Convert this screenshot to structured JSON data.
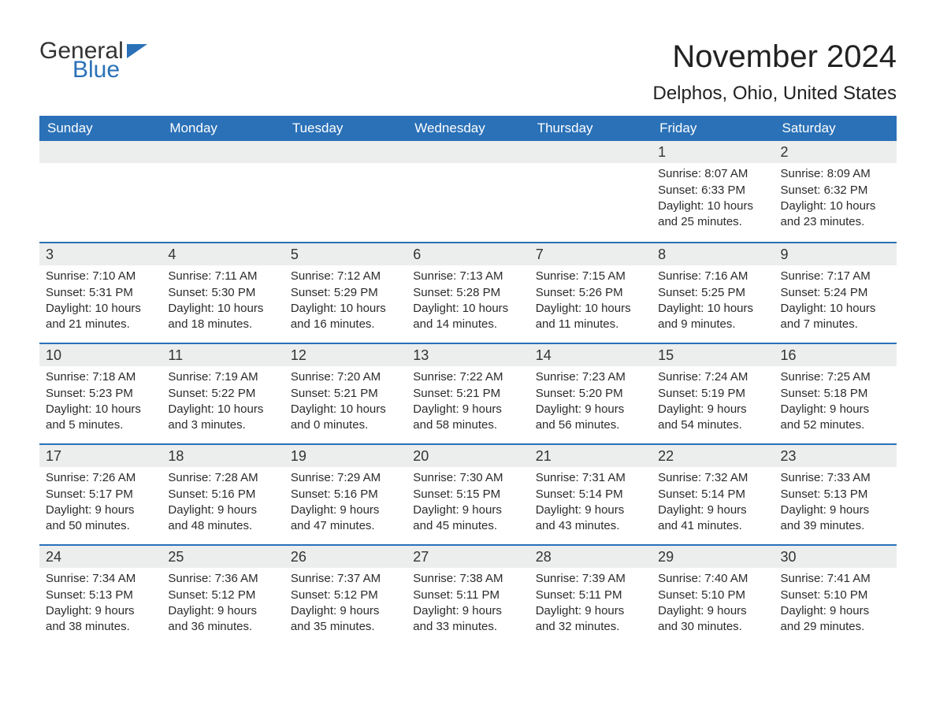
{
  "brand": {
    "part1": "General",
    "part2": "Blue"
  },
  "title": "November 2024",
  "location": "Delphos, Ohio, United States",
  "colors": {
    "header_bg": "#2a71b8",
    "header_text": "#ffffff",
    "daynum_bg": "#eceded",
    "week_border": "#2a71b8",
    "text": "#2b2b2b",
    "page_bg": "#ffffff"
  },
  "daynames": [
    "Sunday",
    "Monday",
    "Tuesday",
    "Wednesday",
    "Thursday",
    "Friday",
    "Saturday"
  ],
  "weeks": [
    [
      {
        "n": "",
        "sunrise": "",
        "sunset": "",
        "daylight": "",
        "empty": true
      },
      {
        "n": "",
        "sunrise": "",
        "sunset": "",
        "daylight": "",
        "empty": true
      },
      {
        "n": "",
        "sunrise": "",
        "sunset": "",
        "daylight": "",
        "empty": true
      },
      {
        "n": "",
        "sunrise": "",
        "sunset": "",
        "daylight": "",
        "empty": true
      },
      {
        "n": "",
        "sunrise": "",
        "sunset": "",
        "daylight": "",
        "empty": true
      },
      {
        "n": "1",
        "sunrise": "Sunrise: 8:07 AM",
        "sunset": "Sunset: 6:33 PM",
        "daylight": "Daylight: 10 hours and 25 minutes."
      },
      {
        "n": "2",
        "sunrise": "Sunrise: 8:09 AM",
        "sunset": "Sunset: 6:32 PM",
        "daylight": "Daylight: 10 hours and 23 minutes."
      }
    ],
    [
      {
        "n": "3",
        "sunrise": "Sunrise: 7:10 AM",
        "sunset": "Sunset: 5:31 PM",
        "daylight": "Daylight: 10 hours and 21 minutes."
      },
      {
        "n": "4",
        "sunrise": "Sunrise: 7:11 AM",
        "sunset": "Sunset: 5:30 PM",
        "daylight": "Daylight: 10 hours and 18 minutes."
      },
      {
        "n": "5",
        "sunrise": "Sunrise: 7:12 AM",
        "sunset": "Sunset: 5:29 PM",
        "daylight": "Daylight: 10 hours and 16 minutes."
      },
      {
        "n": "6",
        "sunrise": "Sunrise: 7:13 AM",
        "sunset": "Sunset: 5:28 PM",
        "daylight": "Daylight: 10 hours and 14 minutes."
      },
      {
        "n": "7",
        "sunrise": "Sunrise: 7:15 AM",
        "sunset": "Sunset: 5:26 PM",
        "daylight": "Daylight: 10 hours and 11 minutes."
      },
      {
        "n": "8",
        "sunrise": "Sunrise: 7:16 AM",
        "sunset": "Sunset: 5:25 PM",
        "daylight": "Daylight: 10 hours and 9 minutes."
      },
      {
        "n": "9",
        "sunrise": "Sunrise: 7:17 AM",
        "sunset": "Sunset: 5:24 PM",
        "daylight": "Daylight: 10 hours and 7 minutes."
      }
    ],
    [
      {
        "n": "10",
        "sunrise": "Sunrise: 7:18 AM",
        "sunset": "Sunset: 5:23 PM",
        "daylight": "Daylight: 10 hours and 5 minutes."
      },
      {
        "n": "11",
        "sunrise": "Sunrise: 7:19 AM",
        "sunset": "Sunset: 5:22 PM",
        "daylight": "Daylight: 10 hours and 3 minutes."
      },
      {
        "n": "12",
        "sunrise": "Sunrise: 7:20 AM",
        "sunset": "Sunset: 5:21 PM",
        "daylight": "Daylight: 10 hours and 0 minutes."
      },
      {
        "n": "13",
        "sunrise": "Sunrise: 7:22 AM",
        "sunset": "Sunset: 5:21 PM",
        "daylight": "Daylight: 9 hours and 58 minutes."
      },
      {
        "n": "14",
        "sunrise": "Sunrise: 7:23 AM",
        "sunset": "Sunset: 5:20 PM",
        "daylight": "Daylight: 9 hours and 56 minutes."
      },
      {
        "n": "15",
        "sunrise": "Sunrise: 7:24 AM",
        "sunset": "Sunset: 5:19 PM",
        "daylight": "Daylight: 9 hours and 54 minutes."
      },
      {
        "n": "16",
        "sunrise": "Sunrise: 7:25 AM",
        "sunset": "Sunset: 5:18 PM",
        "daylight": "Daylight: 9 hours and 52 minutes."
      }
    ],
    [
      {
        "n": "17",
        "sunrise": "Sunrise: 7:26 AM",
        "sunset": "Sunset: 5:17 PM",
        "daylight": "Daylight: 9 hours and 50 minutes."
      },
      {
        "n": "18",
        "sunrise": "Sunrise: 7:28 AM",
        "sunset": "Sunset: 5:16 PM",
        "daylight": "Daylight: 9 hours and 48 minutes."
      },
      {
        "n": "19",
        "sunrise": "Sunrise: 7:29 AM",
        "sunset": "Sunset: 5:16 PM",
        "daylight": "Daylight: 9 hours and 47 minutes."
      },
      {
        "n": "20",
        "sunrise": "Sunrise: 7:30 AM",
        "sunset": "Sunset: 5:15 PM",
        "daylight": "Daylight: 9 hours and 45 minutes."
      },
      {
        "n": "21",
        "sunrise": "Sunrise: 7:31 AM",
        "sunset": "Sunset: 5:14 PM",
        "daylight": "Daylight: 9 hours and 43 minutes."
      },
      {
        "n": "22",
        "sunrise": "Sunrise: 7:32 AM",
        "sunset": "Sunset: 5:14 PM",
        "daylight": "Daylight: 9 hours and 41 minutes."
      },
      {
        "n": "23",
        "sunrise": "Sunrise: 7:33 AM",
        "sunset": "Sunset: 5:13 PM",
        "daylight": "Daylight: 9 hours and 39 minutes."
      }
    ],
    [
      {
        "n": "24",
        "sunrise": "Sunrise: 7:34 AM",
        "sunset": "Sunset: 5:13 PM",
        "daylight": "Daylight: 9 hours and 38 minutes."
      },
      {
        "n": "25",
        "sunrise": "Sunrise: 7:36 AM",
        "sunset": "Sunset: 5:12 PM",
        "daylight": "Daylight: 9 hours and 36 minutes."
      },
      {
        "n": "26",
        "sunrise": "Sunrise: 7:37 AM",
        "sunset": "Sunset: 5:12 PM",
        "daylight": "Daylight: 9 hours and 35 minutes."
      },
      {
        "n": "27",
        "sunrise": "Sunrise: 7:38 AM",
        "sunset": "Sunset: 5:11 PM",
        "daylight": "Daylight: 9 hours and 33 minutes."
      },
      {
        "n": "28",
        "sunrise": "Sunrise: 7:39 AM",
        "sunset": "Sunset: 5:11 PM",
        "daylight": "Daylight: 9 hours and 32 minutes."
      },
      {
        "n": "29",
        "sunrise": "Sunrise: 7:40 AM",
        "sunset": "Sunset: 5:10 PM",
        "daylight": "Daylight: 9 hours and 30 minutes."
      },
      {
        "n": "30",
        "sunrise": "Sunrise: 7:41 AM",
        "sunset": "Sunset: 5:10 PM",
        "daylight": "Daylight: 9 hours and 29 minutes."
      }
    ]
  ]
}
